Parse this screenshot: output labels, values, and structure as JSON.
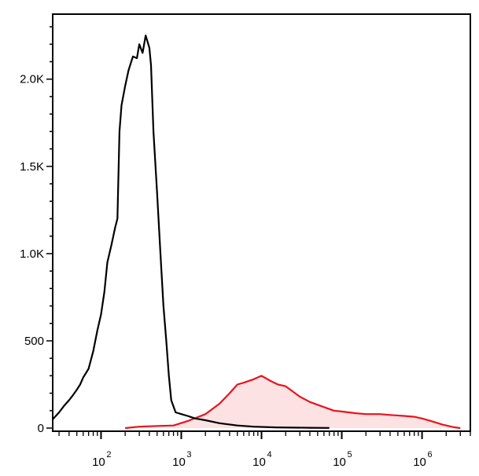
{
  "chart_data": {
    "type": "area",
    "x_scale": "log",
    "xlim": [
      25,
      4000000
    ],
    "ylim": [
      0,
      2350
    ],
    "y_ticks": [
      {
        "value": 0,
        "label": "0"
      },
      {
        "value": 500,
        "label": "500"
      },
      {
        "value": 1000,
        "label": "1.0K"
      },
      {
        "value": 1500,
        "label": "1.5K"
      },
      {
        "value": 2000,
        "label": "2.0K"
      }
    ],
    "x_ticks": [
      {
        "value": 100,
        "base": "10",
        "exp": "2"
      },
      {
        "value": 1000,
        "base": "10",
        "exp": "3"
      },
      {
        "value": 10000,
        "base": "10",
        "exp": "4"
      },
      {
        "value": 100000,
        "base": "10",
        "exp": "5"
      },
      {
        "value": 1000000,
        "base": "10",
        "exp": "6"
      }
    ],
    "series": [
      {
        "color": "#000000",
        "fill": "none",
        "points": [
          [
            25,
            50
          ],
          [
            30,
            90
          ],
          [
            35,
            130
          ],
          [
            40,
            160
          ],
          [
            45,
            190
          ],
          [
            50,
            220
          ],
          [
            55,
            250
          ],
          [
            60,
            290
          ],
          [
            70,
            340
          ],
          [
            80,
            440
          ],
          [
            90,
            560
          ],
          [
            100,
            650
          ],
          [
            110,
            780
          ],
          [
            120,
            950
          ],
          [
            135,
            1050
          ],
          [
            150,
            1150
          ],
          [
            160,
            1200
          ],
          [
            170,
            1700
          ],
          [
            180,
            1850
          ],
          [
            200,
            1960
          ],
          [
            220,
            2050
          ],
          [
            250,
            2130
          ],
          [
            280,
            2120
          ],
          [
            300,
            2200
          ],
          [
            330,
            2150
          ],
          [
            360,
            2250
          ],
          [
            400,
            2180
          ],
          [
            420,
            2080
          ],
          [
            450,
            1700
          ],
          [
            500,
            1350
          ],
          [
            550,
            1000
          ],
          [
            600,
            700
          ],
          [
            650,
            500
          ],
          [
            700,
            300
          ],
          [
            750,
            160
          ],
          [
            850,
            90
          ],
          [
            1000,
            80
          ],
          [
            1200,
            70
          ],
          [
            1500,
            55
          ],
          [
            2000,
            45
          ],
          [
            3000,
            28
          ],
          [
            5000,
            15
          ],
          [
            8000,
            8
          ],
          [
            15000,
            4
          ],
          [
            40000,
            2
          ],
          [
            70000,
            1
          ]
        ]
      },
      {
        "color": "#e8141b",
        "fill": "#fde2e4",
        "points": [
          [
            200,
            0
          ],
          [
            300,
            8
          ],
          [
            500,
            12
          ],
          [
            800,
            15
          ],
          [
            1200,
            40
          ],
          [
            2000,
            80
          ],
          [
            3000,
            140
          ],
          [
            4000,
            200
          ],
          [
            5000,
            250
          ],
          [
            6000,
            260
          ],
          [
            8000,
            280
          ],
          [
            10000,
            300
          ],
          [
            13000,
            270
          ],
          [
            16000,
            250
          ],
          [
            20000,
            240
          ],
          [
            30000,
            180
          ],
          [
            40000,
            150
          ],
          [
            60000,
            120
          ],
          [
            80000,
            100
          ],
          [
            100000,
            95
          ],
          [
            150000,
            85
          ],
          [
            200000,
            80
          ],
          [
            300000,
            80
          ],
          [
            400000,
            75
          ],
          [
            600000,
            70
          ],
          [
            800000,
            65
          ],
          [
            1000000,
            55
          ],
          [
            1300000,
            40
          ],
          [
            1800000,
            20
          ],
          [
            2500000,
            5
          ],
          [
            3000000,
            0
          ]
        ]
      }
    ]
  }
}
